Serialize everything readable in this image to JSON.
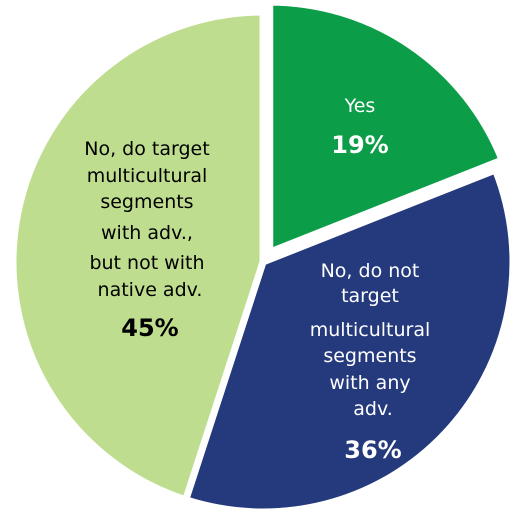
{
  "chart_data": {
    "type": "pie",
    "title": "",
    "slices": [
      {
        "label": "Yes",
        "value": 19,
        "value_label": "19%",
        "color": "#0c9d48",
        "text_color": "#ffffff",
        "exploded": true
      },
      {
        "label": "No, do not target multicultural segments with any adv.",
        "value": 36,
        "value_label": "36%",
        "color": "#253a7c",
        "text_color": "#ffffff",
        "exploded": false
      },
      {
        "label": "No, do target multicultural segments with adv., but not with native adv.",
        "value": 45,
        "value_label": "45%",
        "color": "#bfdd8e",
        "text_color": "#000000",
        "exploded": false
      }
    ],
    "start_angle_deg": 0,
    "direction": "clockwise"
  },
  "labels": {
    "yes": [
      "Yes"
    ],
    "no_any": [
      "No, do not",
      "target",
      "multicultural",
      "segments",
      "with any",
      "adv."
    ],
    "no_native": [
      "No, do target",
      "multicultural",
      "segments",
      "with adv.,",
      "but not with",
      "native adv."
    ]
  }
}
